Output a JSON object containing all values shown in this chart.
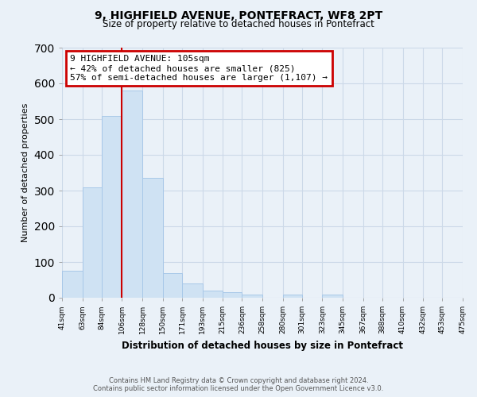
{
  "title": "9, HIGHFIELD AVENUE, PONTEFRACT, WF8 2PT",
  "subtitle": "Size of property relative to detached houses in Pontefract",
  "xlabel": "Distribution of detached houses by size in Pontefract",
  "ylabel": "Number of detached properties",
  "bar_values": [
    75,
    310,
    510,
    580,
    335,
    70,
    40,
    20,
    15,
    10,
    0,
    10,
    0,
    8,
    0,
    0,
    0,
    0,
    0,
    0
  ],
  "bin_edges": [
    41,
    63,
    84,
    106,
    128,
    150,
    171,
    193,
    215,
    236,
    258,
    280,
    301,
    323,
    345,
    367,
    388,
    410,
    432,
    453,
    475
  ],
  "tick_labels": [
    "41sqm",
    "63sqm",
    "84sqm",
    "106sqm",
    "128sqm",
    "150sqm",
    "171sqm",
    "193sqm",
    "215sqm",
    "236sqm",
    "258sqm",
    "280sqm",
    "301sqm",
    "323sqm",
    "345sqm",
    "367sqm",
    "388sqm",
    "410sqm",
    "432sqm",
    "453sqm",
    "475sqm"
  ],
  "bar_color": "#cfe2f3",
  "bar_edge_color": "#a8c8e8",
  "property_line_x": 106,
  "ylim": [
    0,
    700
  ],
  "yticks": [
    0,
    100,
    200,
    300,
    400,
    500,
    600,
    700
  ],
  "annotation_title": "9 HIGHFIELD AVENUE: 105sqm",
  "annotation_line1": "← 42% of detached houses are smaller (825)",
  "annotation_line2": "57% of semi-detached houses are larger (1,107) →",
  "footer_line1": "Contains HM Land Registry data © Crown copyright and database right 2024.",
  "footer_line2": "Contains public sector information licensed under the Open Government Licence v3.0.",
  "grid_color": "#ccd9e8",
  "background_color": "#eaf1f8"
}
